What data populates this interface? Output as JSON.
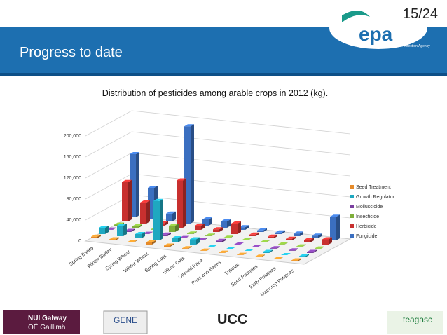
{
  "header": {
    "page": "15/24",
    "logo": "epa",
    "agency": "Environmental Protection Agency",
    "title": "Progress to date"
  },
  "chart_data": {
    "type": "bar3d",
    "title": "Distribution of pesticides among arable crops in 2012 (kg).",
    "categories": [
      "Spring Barley",
      "Winter Barley",
      "Spring Wheat",
      "Winter Wheat",
      "Spring Oats",
      "Winter Oats",
      "Oilseed Rape",
      "Peas and Beans",
      "Triticale",
      "Seed Potatoes",
      "Early Potatoes",
      "Maincrop Potatoes"
    ],
    "series": [
      {
        "name": "Seed Treatment",
        "color": "#e58a2a",
        "values": [
          3000,
          2000,
          1000,
          4000,
          2000,
          1000,
          500,
          500,
          500,
          1000,
          500,
          2000
        ]
      },
      {
        "name": "Growth Regulator",
        "color": "#1fa8c0",
        "values": [
          12000,
          20000,
          8000,
          75000,
          8000,
          10000,
          0,
          0,
          0,
          2000,
          0,
          2000
        ]
      },
      {
        "name": "Molluscicide",
        "color": "#7a3fa0",
        "values": [
          500,
          2000,
          500,
          3000,
          500,
          1000,
          3000,
          0,
          0,
          1000,
          1000,
          2000
        ]
      },
      {
        "name": "Insecticide",
        "color": "#7fae3a",
        "values": [
          2000,
          3000,
          1000,
          12000,
          1000,
          1000,
          1000,
          500,
          500,
          500,
          500,
          500
        ]
      },
      {
        "name": "Herbicide",
        "color": "#c8302f",
        "values": [
          75000,
          40000,
          5000,
          90000,
          8000,
          5000,
          20000,
          3000,
          3000,
          3000,
          5000,
          10000
        ]
      },
      {
        "name": "Fungicide",
        "color": "#3b6fc0",
        "values": [
          120000,
          60000,
          15000,
          185000,
          12000,
          12000,
          5000,
          3000,
          3000,
          5000,
          5000,
          45000
        ]
      }
    ],
    "ylim": [
      0,
      200000
    ],
    "yticks": [
      0,
      {
        "value": 40000,
        "label": "40,000"
      },
      {
        "value": 80000,
        "label": "80,000"
      },
      {
        "value": 120000,
        "label": "120,000"
      },
      {
        "value": 160000,
        "label": "160,000"
      },
      {
        "value": 200000,
        "label": "200,000"
      }
    ],
    "grid": true,
    "legend": "right"
  },
  "footer": {
    "nui1": "NUI Galway",
    "nui2": "OÉ Gaillimh",
    "gene": "GENE",
    "ucc": "UCC",
    "teagasc": "teagasc"
  }
}
